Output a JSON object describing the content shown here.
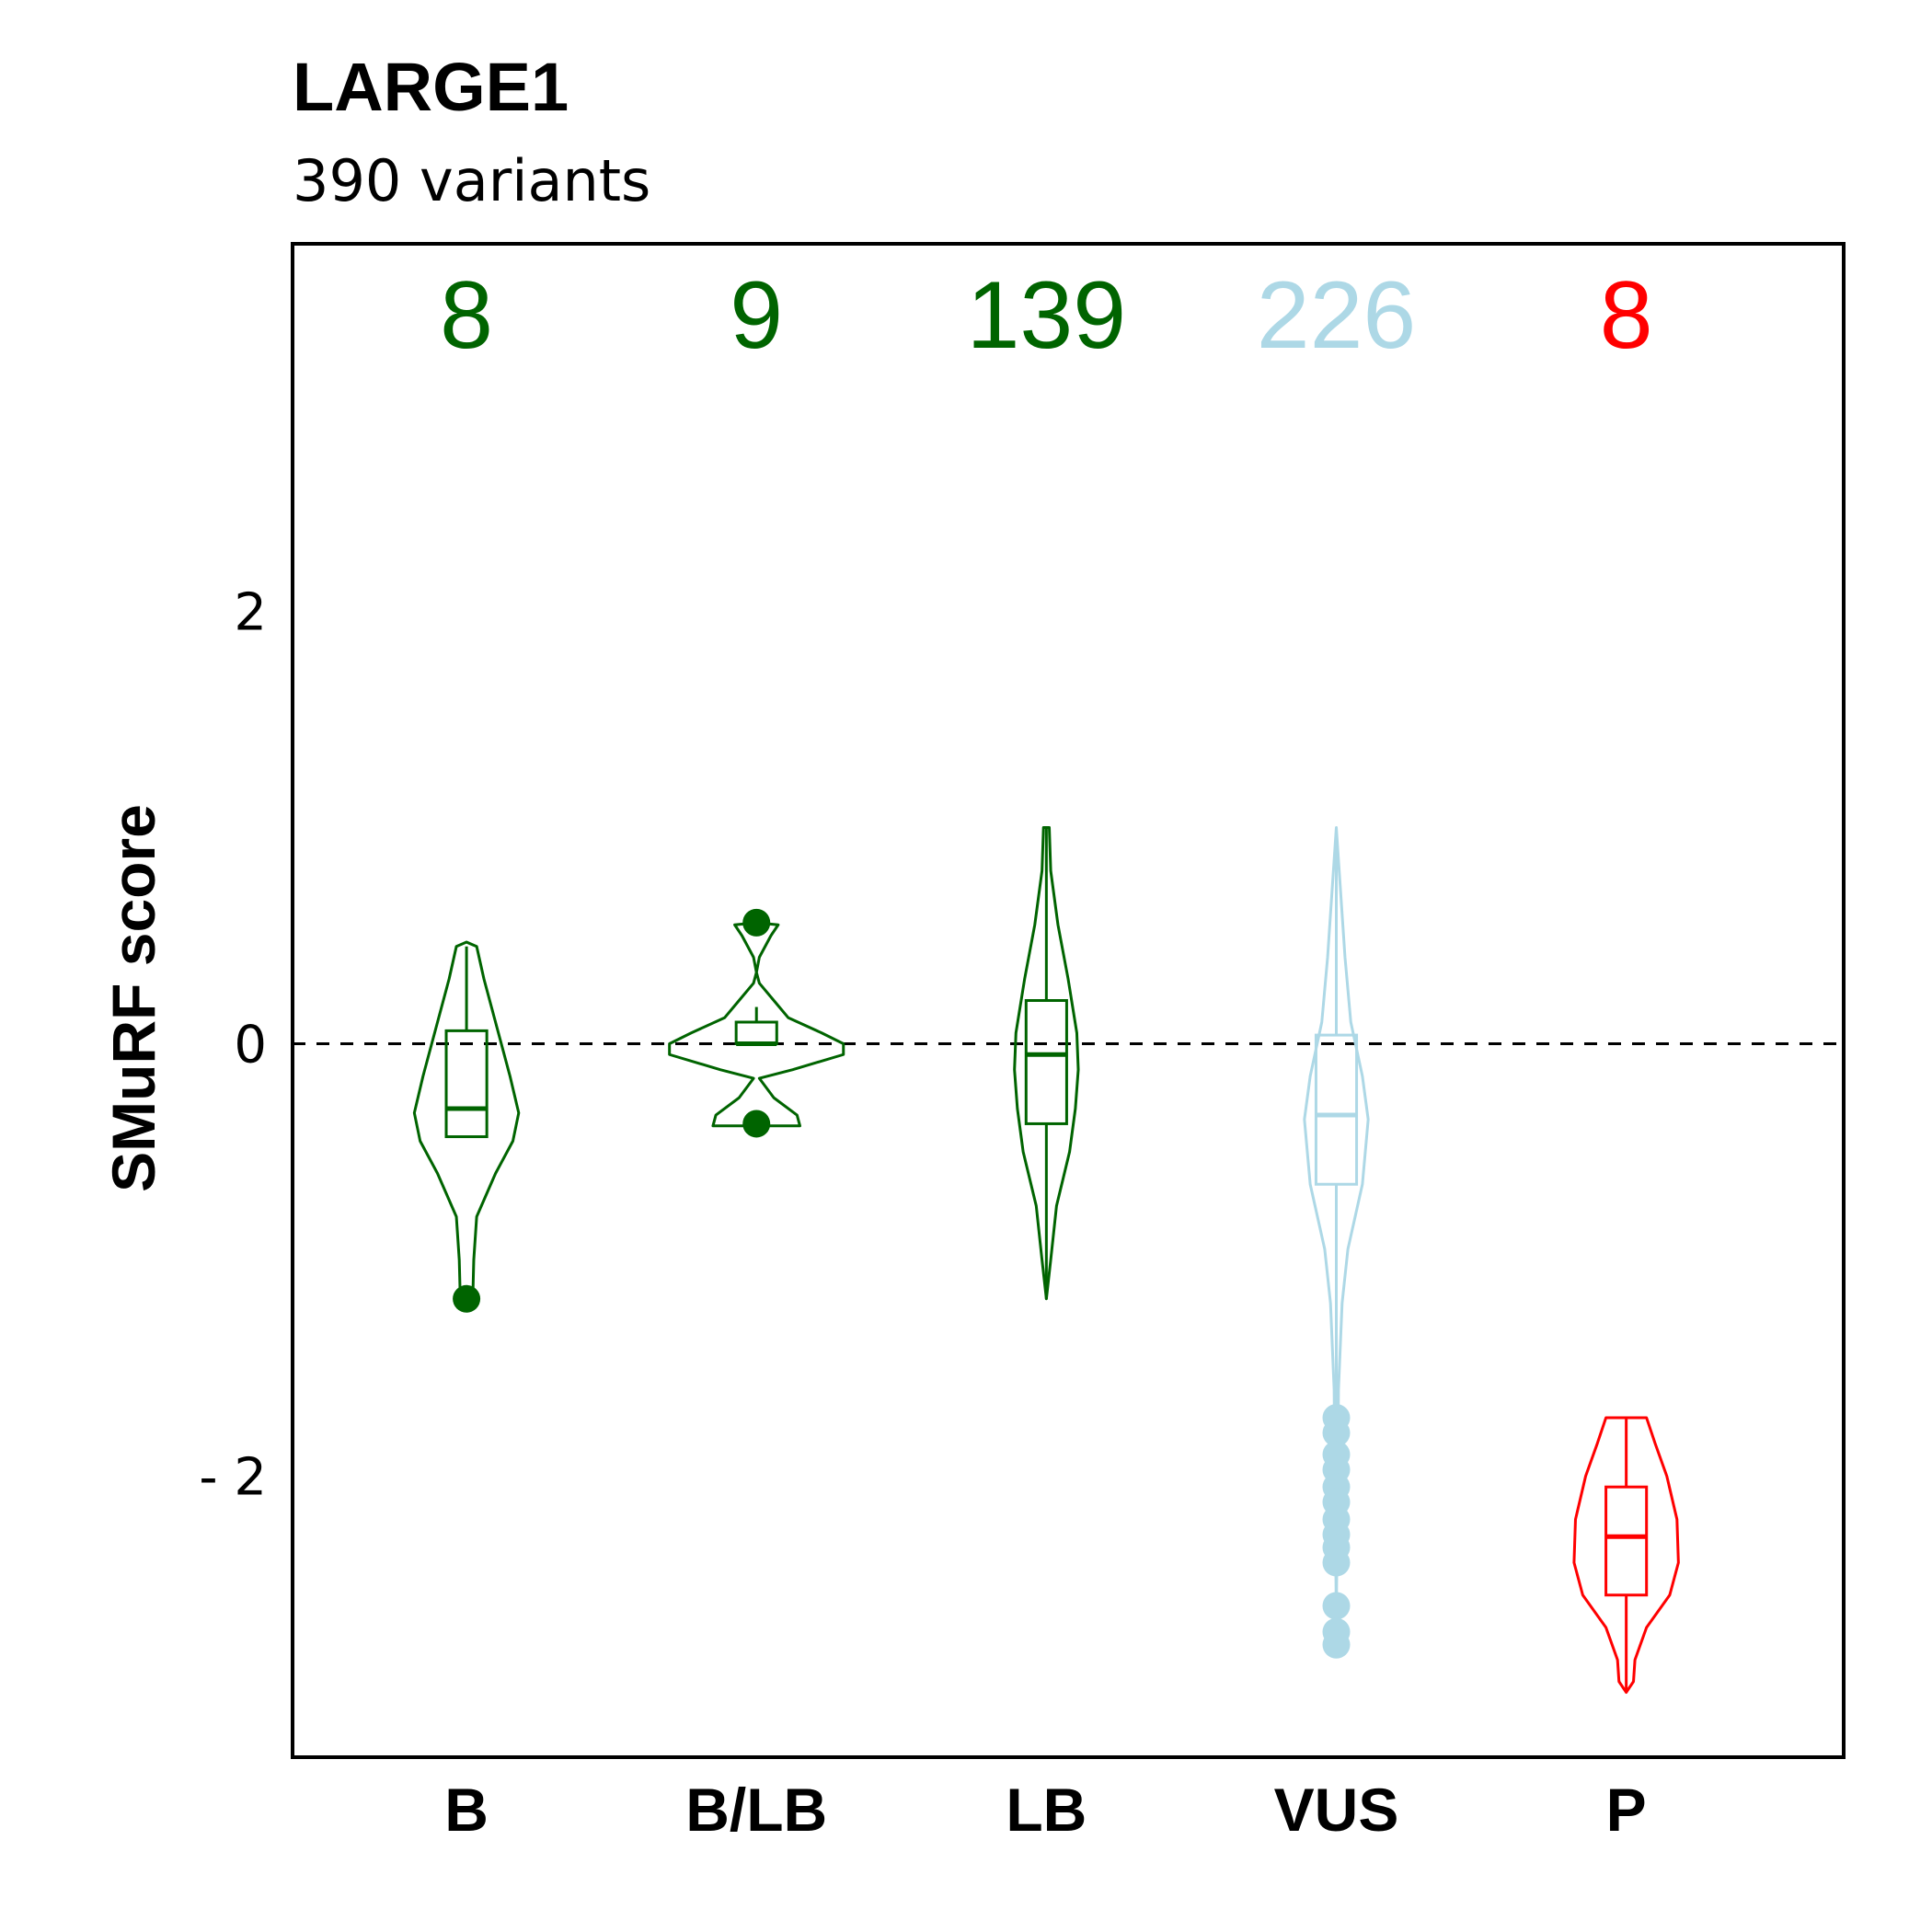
{
  "chart_data": {
    "type": "violin",
    "title": "LARGE1",
    "subtitle": "390 variants",
    "ylabel": "SMuRF score",
    "xlabel": "",
    "ylim": [
      -3.3,
      3.7
    ],
    "yticks": [
      -2,
      0,
      2
    ],
    "ytick_labels": [
      "- 2",
      "0",
      "2"
    ],
    "reference_line": 0,
    "categories": [
      "B",
      "B/LB",
      "LB",
      "VUS",
      "P"
    ],
    "counts": [
      "8",
      "9",
      "139",
      "226",
      "8"
    ],
    "series": [
      {
        "category": "B",
        "color": "#006400",
        "count": 8,
        "violin_profile": [
          [
            -1.18,
            0.0
          ],
          [
            -1.13,
            0.045
          ],
          [
            -1.0,
            0.05
          ],
          [
            -0.8,
            0.07
          ],
          [
            -0.6,
            0.2
          ],
          [
            -0.45,
            0.32
          ],
          [
            -0.32,
            0.36
          ],
          [
            -0.15,
            0.3
          ],
          [
            0.1,
            0.2
          ],
          [
            0.3,
            0.12
          ],
          [
            0.45,
            0.07
          ],
          [
            0.47,
            0.0
          ]
        ],
        "box": {
          "q1": -0.43,
          "median": -0.3,
          "q3": 0.06,
          "whisker_low": -0.43,
          "whisker_high": 0.45
        },
        "outliers": [
          -1.18
        ]
      },
      {
        "category": "B/LB",
        "color": "#006400",
        "count": 9,
        "violin_profile": [
          [
            -0.38,
            0.0
          ],
          [
            -0.38,
            0.3
          ],
          [
            -0.33,
            0.28
          ],
          [
            -0.25,
            0.12
          ],
          [
            -0.16,
            0.02
          ],
          [
            -0.12,
            0.25
          ],
          [
            -0.05,
            0.6
          ],
          [
            0.0,
            0.6
          ],
          [
            0.05,
            0.45
          ],
          [
            0.12,
            0.22
          ],
          [
            0.2,
            0.12
          ],
          [
            0.28,
            0.02
          ],
          [
            0.33,
            0.0
          ],
          [
            0.4,
            0.02
          ],
          [
            0.5,
            0.1
          ],
          [
            0.55,
            0.15
          ],
          [
            0.56,
            0.0
          ]
        ],
        "box": {
          "q1": 0.0,
          "median": 0.0,
          "q3": 0.1,
          "whisker_low": 0.0,
          "whisker_high": 0.17
        },
        "outliers": [
          0.56,
          -0.37
        ]
      },
      {
        "category": "LB",
        "color": "#006400",
        "count": 139,
        "violin_profile": [
          [
            -1.18,
            0.0
          ],
          [
            -1.0,
            0.03
          ],
          [
            -0.75,
            0.07
          ],
          [
            -0.5,
            0.16
          ],
          [
            -0.3,
            0.2
          ],
          [
            -0.12,
            0.22
          ],
          [
            0.05,
            0.21
          ],
          [
            0.3,
            0.15
          ],
          [
            0.55,
            0.08
          ],
          [
            0.8,
            0.03
          ],
          [
            1.0,
            0.02
          ],
          [
            1.0,
            0.0
          ]
        ],
        "box": {
          "q1": -0.37,
          "median": -0.05,
          "q3": 0.2,
          "whisker_low": -1.18,
          "whisker_high": 1.0
        },
        "outliers": []
      },
      {
        "category": "VUS",
        "color": "#ADD8E6",
        "count": 226,
        "violin_profile": [
          [
            -2.65,
            0.0
          ],
          [
            -2.3,
            0.005
          ],
          [
            -2.0,
            0.01
          ],
          [
            -1.6,
            0.015
          ],
          [
            -1.2,
            0.04
          ],
          [
            -0.95,
            0.08
          ],
          [
            -0.65,
            0.18
          ],
          [
            -0.35,
            0.22
          ],
          [
            -0.15,
            0.18
          ],
          [
            0.1,
            0.1
          ],
          [
            0.4,
            0.06
          ],
          [
            0.7,
            0.03
          ],
          [
            1.0,
            0.0
          ]
        ],
        "box": {
          "q1": -0.65,
          "median": -0.33,
          "q3": 0.04,
          "whisker_low": -1.72,
          "whisker_high": 1.0
        },
        "outliers": [
          -1.73,
          -1.8,
          -1.9,
          -1.97,
          -2.05,
          -2.12,
          -2.2,
          -2.27,
          -2.33,
          -2.4,
          -2.6,
          -2.72,
          -2.78
        ]
      },
      {
        "category": "P",
        "color": "#FF0000",
        "count": 8,
        "violin_profile": [
          [
            -3.0,
            0.0
          ],
          [
            -2.95,
            0.05
          ],
          [
            -2.85,
            0.06
          ],
          [
            -2.7,
            0.14
          ],
          [
            -2.55,
            0.3
          ],
          [
            -2.4,
            0.36
          ],
          [
            -2.2,
            0.35
          ],
          [
            -2.0,
            0.28
          ],
          [
            -1.85,
            0.2
          ],
          [
            -1.73,
            0.14
          ],
          [
            -1.73,
            0.0
          ]
        ],
        "box": {
          "q1": -2.55,
          "median": -2.28,
          "q3": -2.05,
          "whisker_low": -3.0,
          "whisker_high": -1.73
        },
        "outliers": []
      }
    ]
  }
}
